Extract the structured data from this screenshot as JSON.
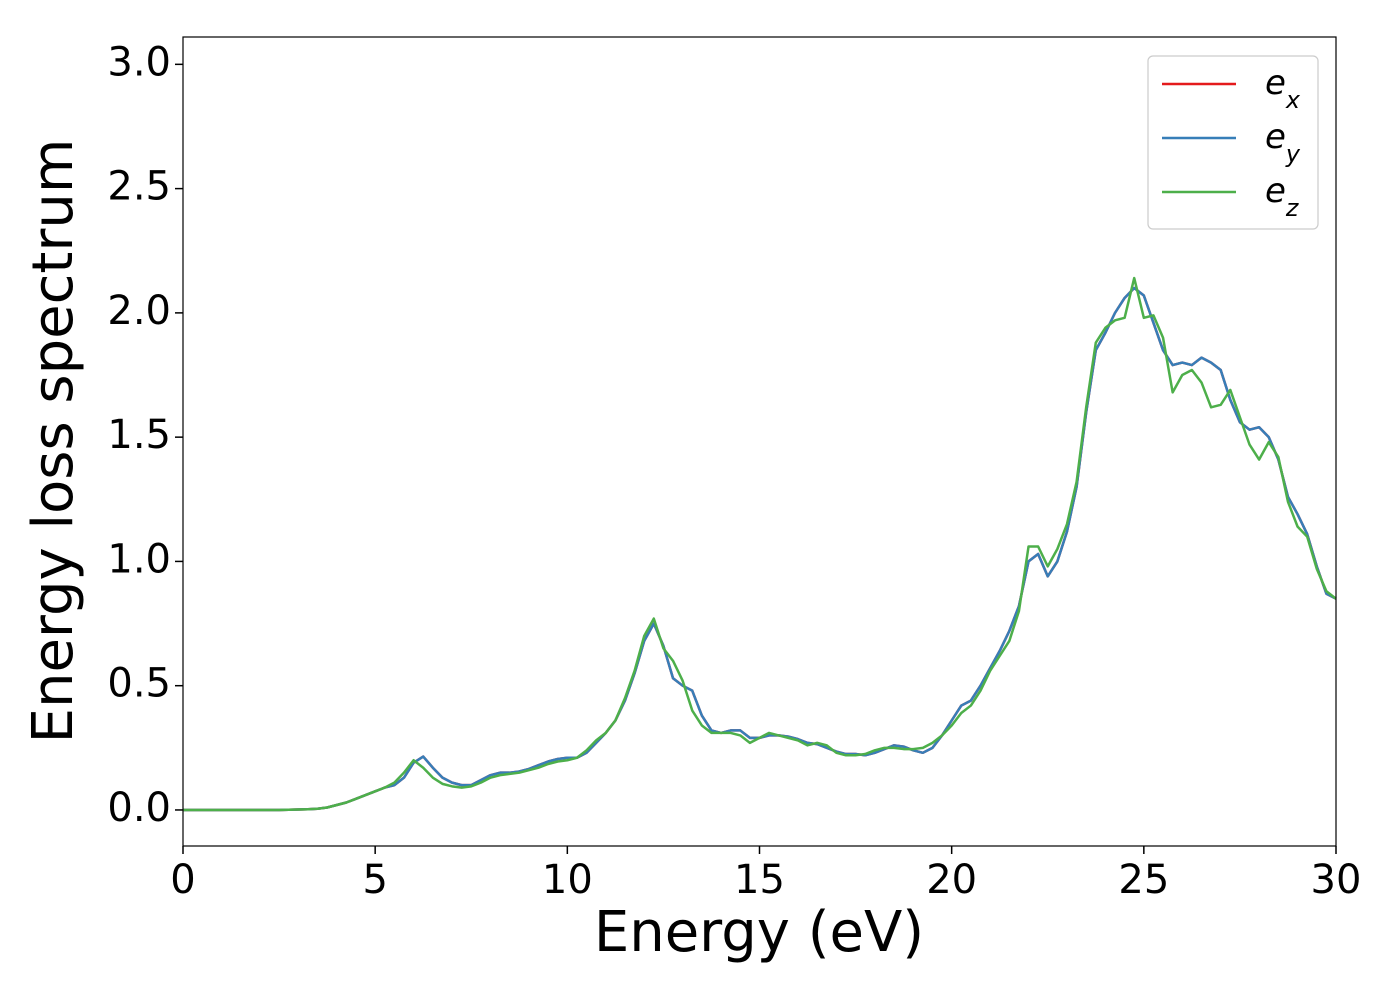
{
  "chart_data": {
    "type": "line",
    "xlabel": "Energy (eV)",
    "ylabel": "Energy loss spectrum",
    "x": [
      0,
      0.25,
      0.5,
      0.75,
      1,
      1.25,
      1.5,
      1.75,
      2,
      2.25,
      2.5,
      2.75,
      3,
      3.25,
      3.5,
      3.75,
      4,
      4.25,
      4.5,
      4.75,
      5,
      5.25,
      5.5,
      5.75,
      6,
      6.25,
      6.5,
      6.75,
      7,
      7.25,
      7.5,
      7.75,
      8,
      8.25,
      8.5,
      8.75,
      9,
      9.25,
      9.5,
      9.75,
      10,
      10.25,
      10.5,
      10.75,
      11,
      11.25,
      11.5,
      11.75,
      12,
      12.25,
      12.5,
      12.75,
      13,
      13.25,
      13.5,
      13.75,
      14,
      14.25,
      14.5,
      14.75,
      15,
      15.25,
      15.5,
      15.75,
      16,
      16.25,
      16.5,
      16.75,
      17,
      17.25,
      17.5,
      17.75,
      18,
      18.25,
      18.5,
      18.75,
      19,
      19.25,
      19.5,
      19.75,
      20,
      20.25,
      20.5,
      20.75,
      21,
      21.25,
      21.5,
      21.75,
      22,
      22.25,
      22.5,
      22.75,
      23,
      23.25,
      23.5,
      23.75,
      24,
      24.25,
      24.5,
      24.75,
      25,
      25.25,
      25.5,
      25.75,
      26,
      26.25,
      26.5,
      26.75,
      27,
      27.25,
      27.5,
      27.75,
      28,
      28.25,
      28.5,
      28.75,
      29,
      29.25,
      29.5,
      29.75,
      30
    ],
    "series": [
      {
        "name": "e_x",
        "color": "#e41a1c",
        "values": [
          0,
          0,
          0,
          0,
          0,
          0,
          0,
          0,
          0,
          0,
          0,
          0.001,
          0.002,
          0.003,
          0.005,
          0.01,
          0.02,
          0.03,
          0.045,
          0.06,
          0.075,
          0.09,
          0.1,
          0.13,
          0.19,
          0.215,
          0.17,
          0.13,
          0.11,
          0.1,
          0.1,
          0.12,
          0.14,
          0.15,
          0.15,
          0.155,
          0.165,
          0.18,
          0.195,
          0.205,
          0.21,
          0.21,
          0.23,
          0.27,
          0.31,
          0.36,
          0.44,
          0.55,
          0.68,
          0.75,
          0.66,
          0.53,
          0.5,
          0.48,
          0.38,
          0.32,
          0.31,
          0.32,
          0.32,
          0.29,
          0.29,
          0.3,
          0.3,
          0.295,
          0.285,
          0.27,
          0.265,
          0.25,
          0.235,
          0.225,
          0.225,
          0.22,
          0.23,
          0.245,
          0.26,
          0.255,
          0.24,
          0.23,
          0.25,
          0.3,
          0.36,
          0.42,
          0.44,
          0.5,
          0.57,
          0.64,
          0.72,
          0.82,
          1.0,
          1.03,
          0.94,
          1.0,
          1.12,
          1.3,
          1.6,
          1.85,
          1.92,
          2.0,
          2.06,
          2.1,
          2.07,
          1.96,
          1.85,
          1.79,
          1.8,
          1.79,
          1.82,
          1.8,
          1.77,
          1.65,
          1.56,
          1.53,
          1.54,
          1.5,
          1.41,
          1.26,
          1.19,
          1.11,
          0.98,
          0.87,
          0.85
        ]
      },
      {
        "name": "e_y",
        "color": "#377eb8",
        "values": [
          0,
          0,
          0,
          0,
          0,
          0,
          0,
          0,
          0,
          0,
          0,
          0.001,
          0.002,
          0.003,
          0.005,
          0.01,
          0.02,
          0.03,
          0.045,
          0.06,
          0.075,
          0.09,
          0.1,
          0.13,
          0.19,
          0.215,
          0.17,
          0.13,
          0.11,
          0.1,
          0.1,
          0.12,
          0.14,
          0.15,
          0.15,
          0.155,
          0.165,
          0.18,
          0.195,
          0.205,
          0.21,
          0.21,
          0.23,
          0.27,
          0.31,
          0.36,
          0.44,
          0.55,
          0.68,
          0.75,
          0.66,
          0.53,
          0.5,
          0.48,
          0.38,
          0.32,
          0.31,
          0.32,
          0.32,
          0.29,
          0.29,
          0.3,
          0.3,
          0.295,
          0.285,
          0.27,
          0.265,
          0.25,
          0.235,
          0.225,
          0.225,
          0.22,
          0.23,
          0.245,
          0.26,
          0.255,
          0.24,
          0.23,
          0.25,
          0.3,
          0.36,
          0.42,
          0.44,
          0.5,
          0.57,
          0.64,
          0.72,
          0.82,
          1.0,
          1.03,
          0.94,
          1.0,
          1.12,
          1.3,
          1.6,
          1.85,
          1.92,
          2.0,
          2.06,
          2.1,
          2.07,
          1.96,
          1.85,
          1.79,
          1.8,
          1.79,
          1.82,
          1.8,
          1.77,
          1.65,
          1.56,
          1.53,
          1.54,
          1.5,
          1.41,
          1.26,
          1.19,
          1.11,
          0.98,
          0.87,
          0.85
        ]
      },
      {
        "name": "e_z",
        "color": "#4daf4a",
        "values": [
          0,
          0,
          0,
          0,
          0,
          0,
          0,
          0,
          0,
          0,
          0,
          0.001,
          0.002,
          0.003,
          0.005,
          0.01,
          0.02,
          0.03,
          0.045,
          0.06,
          0.075,
          0.09,
          0.11,
          0.15,
          0.2,
          0.17,
          0.13,
          0.105,
          0.095,
          0.09,
          0.095,
          0.11,
          0.13,
          0.14,
          0.145,
          0.15,
          0.16,
          0.17,
          0.185,
          0.195,
          0.2,
          0.21,
          0.24,
          0.28,
          0.31,
          0.36,
          0.45,
          0.56,
          0.7,
          0.77,
          0.65,
          0.6,
          0.52,
          0.4,
          0.34,
          0.31,
          0.31,
          0.31,
          0.3,
          0.27,
          0.29,
          0.31,
          0.3,
          0.29,
          0.28,
          0.26,
          0.27,
          0.26,
          0.23,
          0.22,
          0.22,
          0.225,
          0.24,
          0.25,
          0.25,
          0.245,
          0.245,
          0.25,
          0.27,
          0.3,
          0.34,
          0.39,
          0.42,
          0.48,
          0.56,
          0.62,
          0.68,
          0.8,
          1.06,
          1.06,
          0.98,
          1.05,
          1.15,
          1.32,
          1.62,
          1.88,
          1.94,
          1.97,
          1.98,
          2.14,
          1.98,
          1.99,
          1.9,
          1.68,
          1.75,
          1.77,
          1.72,
          1.62,
          1.63,
          1.69,
          1.58,
          1.47,
          1.41,
          1.48,
          1.42,
          1.24,
          1.14,
          1.1,
          0.97,
          0.88,
          0.85
        ]
      }
    ],
    "xlim": [
      0,
      30
    ],
    "xticks": [
      0,
      5,
      10,
      15,
      20,
      25,
      30
    ],
    "ylim": [
      -0.145,
      3.11
    ],
    "yticks": [
      {
        "value": 0,
        "label": "0.0"
      },
      0.5,
      {
        "value": 1,
        "label": "1.0"
      },
      1.5,
      {
        "value": 2,
        "label": "2.0"
      },
      2.5,
      {
        "value": 3,
        "label": "3.0"
      }
    ],
    "grid": false,
    "legend": "upper right"
  }
}
